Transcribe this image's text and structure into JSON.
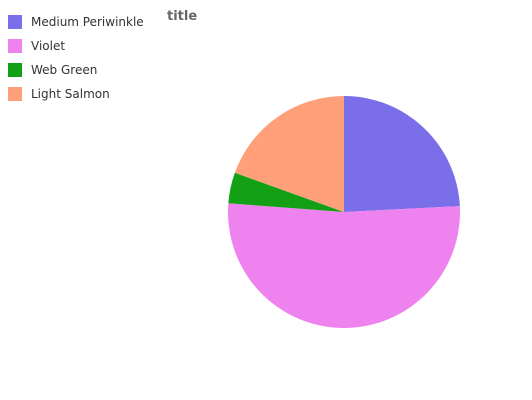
{
  "chart_data": {
    "type": "pie",
    "title": "title",
    "legend_position": "top-left",
    "slices": [
      {
        "label": "Medium Periwinkle",
        "value": 24.2,
        "color": "#7b6fe9"
      },
      {
        "label": "Violet",
        "value": 52.0,
        "color": "#ee82ee"
      },
      {
        "label": "Web Green",
        "value": 4.3,
        "color": "#14a014"
      },
      {
        "label": "Light Salmon",
        "value": 19.5,
        "color": "#ffa07a"
      }
    ]
  }
}
